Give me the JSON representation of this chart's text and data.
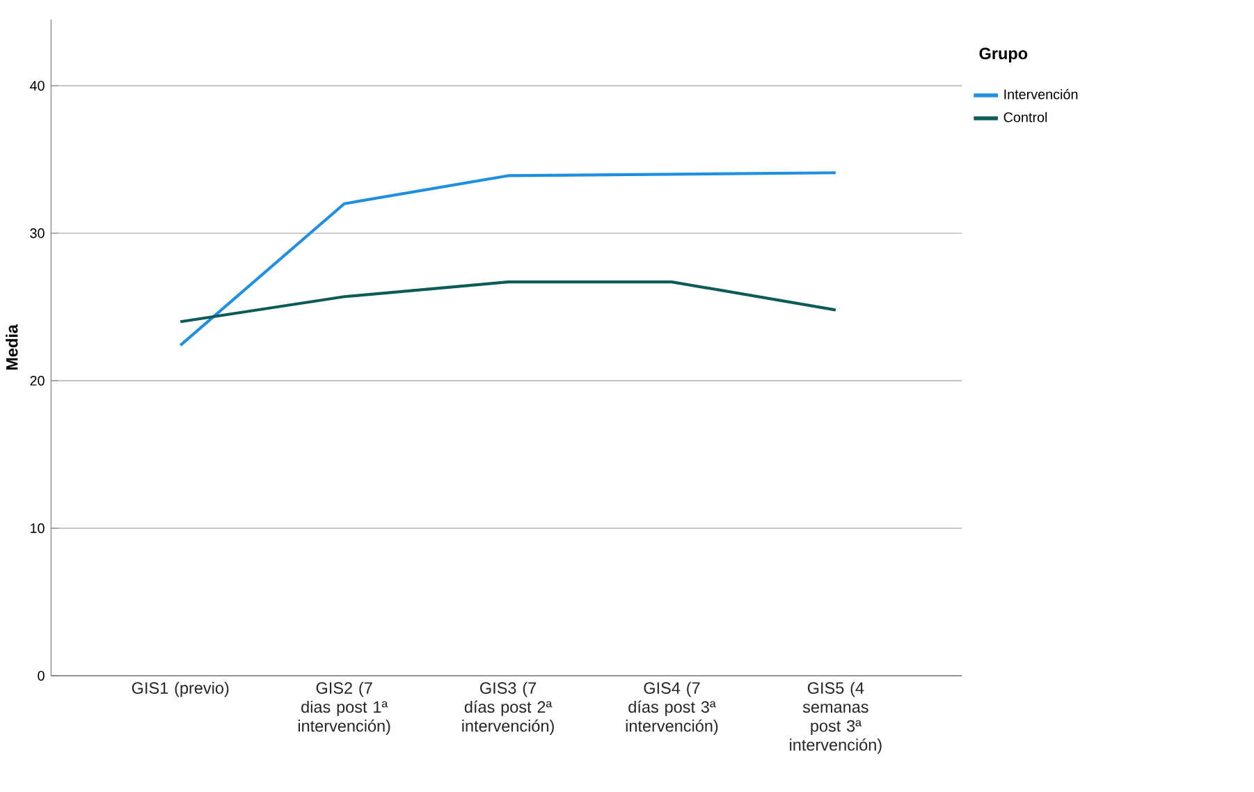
{
  "chart_data": {
    "type": "line",
    "ylabel": "Media",
    "legend_title": "Grupo",
    "categories": [
      "GIS1 (previo)",
      "GIS2 (7 dias post 1ª intervención)",
      "GIS3 (7 días post 2ª intervención)",
      "GIS4 (7 días post 3ª intervención)",
      "GIS5 (4 semanas post 3ª intervención)"
    ],
    "series": [
      {
        "name": "Intervención",
        "color": "#1e8fe1",
        "values": [
          22.4,
          32.0,
          33.9,
          34.0,
          34.1
        ]
      },
      {
        "name": "Control",
        "color": "#0b5c58",
        "values": [
          24.0,
          25.7,
          26.7,
          26.7,
          24.8
        ]
      }
    ],
    "ylim": [
      0,
      44.5
    ],
    "yticks": [
      0,
      10,
      20,
      30,
      40
    ],
    "grid": "y",
    "legend": "top right",
    "marker": "none",
    "line_style": "solid"
  }
}
